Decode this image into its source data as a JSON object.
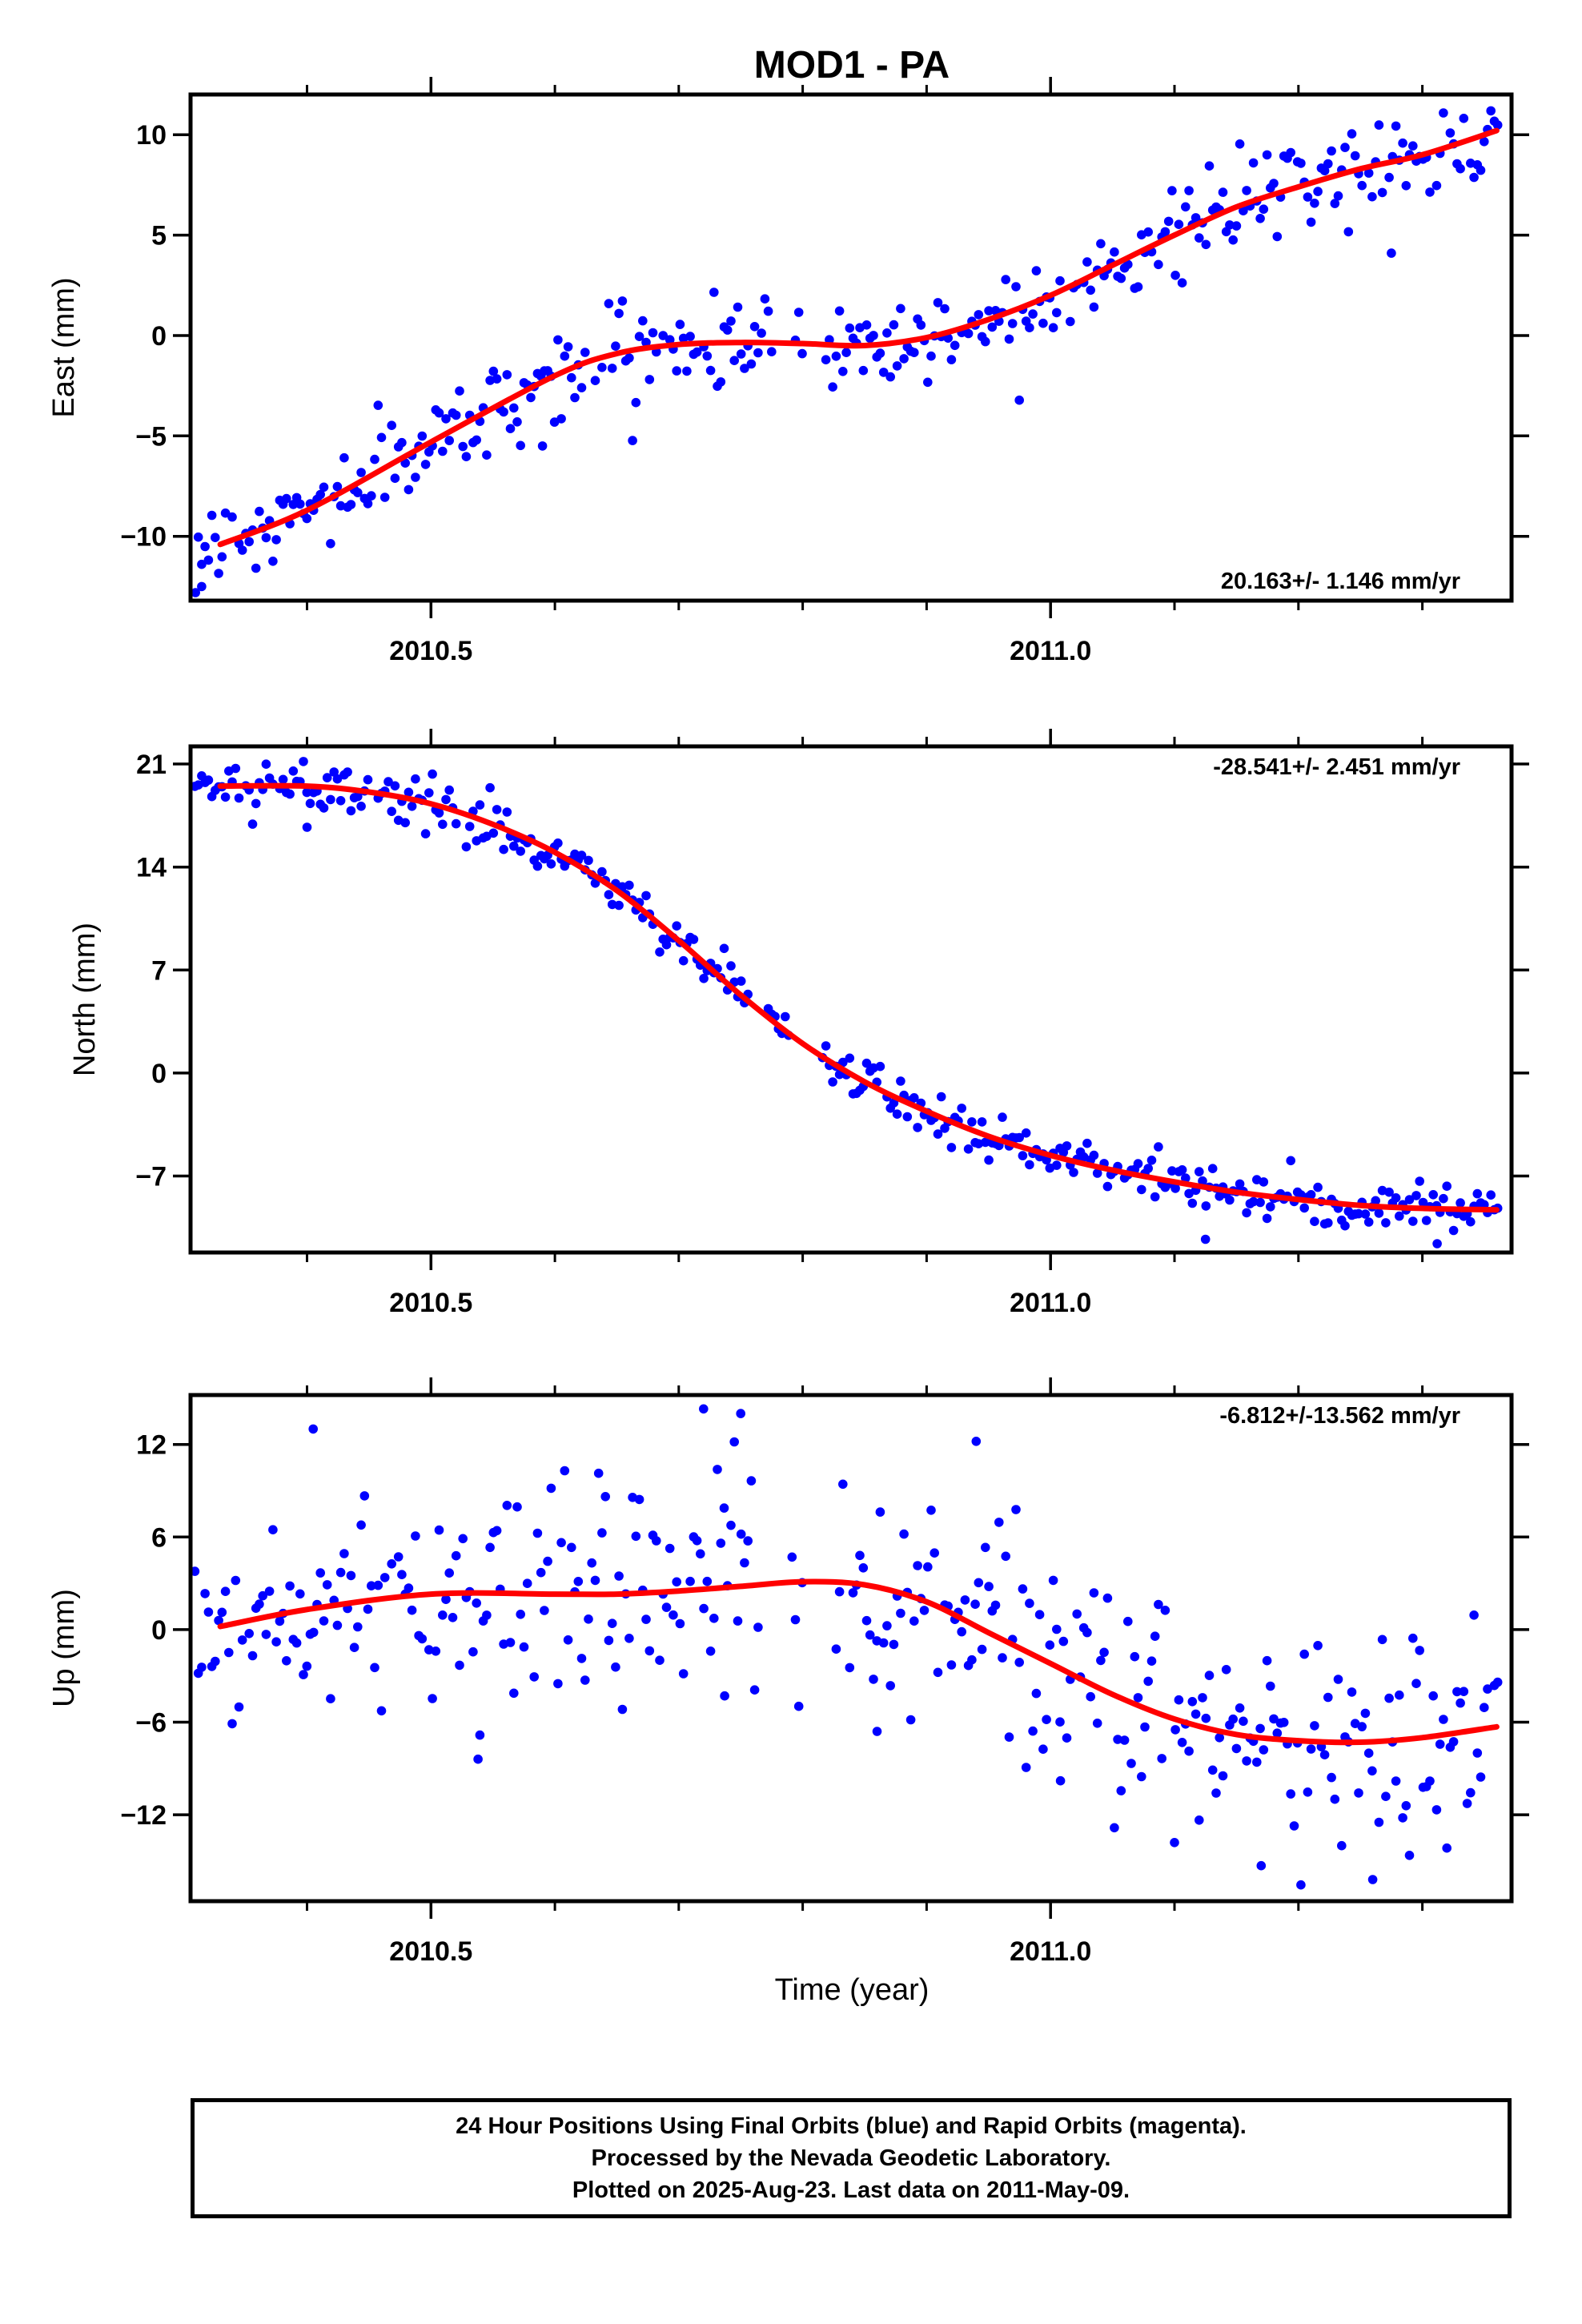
{
  "title": "MOD1 - PA",
  "xlabel": "Time (year)",
  "footer": {
    "lines": [
      "24 Hour Positions Using Final Orbits (blue) and Rapid Orbits (magenta).",
      "Processed by the Nevada Geodetic Laboratory.",
      "Plotted on 2025-Aug-23. Last data on 2011-May-09."
    ]
  },
  "colors": {
    "points": "#0000ff",
    "fit": "#ff0000",
    "axes": "#000000"
  },
  "chart_data": [
    {
      "type": "scatter",
      "component": "east",
      "ylabel": "East (mm)",
      "rate_label": "20.163+/- 1.146 mm/yr",
      "rate_placement": "bottom-right",
      "xlim": [
        2010.306,
        2011.372
      ],
      "ylim": [
        -13.2,
        12
      ],
      "x_ticks": [
        2010.5,
        2011.0
      ],
      "x_tick_labels": [
        "2010.5",
        "2011.0"
      ],
      "x_minor_step": 0.1,
      "y_ticks": [
        -10,
        -5,
        0,
        5,
        10
      ],
      "y_tick_labels": [
        "−10",
        "−5",
        "0",
        "5",
        "10"
      ],
      "noise_mm": 1.1,
      "grid": false,
      "fit": {
        "x": [
          2010.33,
          2010.4,
          2010.5,
          2010.6,
          2010.65,
          2010.7,
          2010.75,
          2010.8,
          2010.85,
          2010.9,
          2010.95,
          2011.0,
          2011.05,
          2011.1,
          2011.15,
          2011.2,
          2011.25,
          2011.3,
          2011.36
        ],
        "y": [
          -10.4,
          -8.7,
          -5.3,
          -2.0,
          -0.9,
          -0.45,
          -0.35,
          -0.4,
          -0.5,
          -0.1,
          0.8,
          2.0,
          3.5,
          5.0,
          6.4,
          7.4,
          8.3,
          9.0,
          10.2
        ]
      },
      "outliers": [
        [
          2010.31,
          -12.8
        ],
        [
          2010.315,
          -12.5
        ],
        [
          2010.59,
          -5.5
        ],
        [
          2011.275,
          4.1
        ]
      ],
      "gaps": [
        [
          2010.776,
          2010.793
        ],
        [
          2010.8,
          2010.818
        ]
      ]
    },
    {
      "type": "scatter",
      "component": "north",
      "ylabel": "North (mm)",
      "rate_label": "-28.541+/- 2.451 mm/yr",
      "rate_placement": "top-right",
      "xlim": [
        2010.306,
        2011.372
      ],
      "ylim": [
        -12.2,
        22.2
      ],
      "x_ticks": [
        2010.5,
        2011.0
      ],
      "x_tick_labels": [
        "2010.5",
        "2011.0"
      ],
      "x_minor_step": 0.1,
      "y_ticks": [
        -7,
        0,
        7,
        14,
        21
      ],
      "y_tick_labels": [
        "−7",
        "0",
        "7",
        "14",
        "21"
      ],
      "noise_mm": 0.85,
      "grid": false,
      "fit": {
        "x": [
          2010.33,
          2010.4,
          2010.45,
          2010.5,
          2010.55,
          2010.6,
          2010.65,
          2010.7,
          2010.75,
          2010.8,
          2010.85,
          2010.9,
          2010.95,
          2011.0,
          2011.05,
          2011.1,
          2011.15,
          2011.2,
          2011.25,
          2011.3,
          2011.36
        ],
        "y": [
          19.5,
          19.5,
          19.1,
          18.3,
          16.9,
          15.0,
          12.4,
          9.0,
          5.3,
          2.0,
          -0.6,
          -2.6,
          -4.3,
          -5.6,
          -6.6,
          -7.4,
          -8.1,
          -8.6,
          -9.0,
          -9.2,
          -9.3
        ]
      },
      "outliers": [
        [
          2010.4,
          16.7
        ],
        [
          2011.125,
          -11.3
        ],
        [
          2011.312,
          -11.6
        ]
      ],
      "gaps": [
        [
          2010.76,
          2010.772
        ],
        [
          2010.79,
          2010.815
        ]
      ]
    },
    {
      "type": "scatter",
      "component": "up",
      "ylabel": "Up (mm)",
      "rate_label": "-6.812+/-13.562 mm/yr",
      "rate_placement": "top-right",
      "xlim": [
        2010.306,
        2011.372
      ],
      "ylim": [
        -17.6,
        15.2
      ],
      "x_ticks": [
        2010.5,
        2011.0
      ],
      "x_tick_labels": [
        "2010.5",
        "2011.0"
      ],
      "x_minor_step": 0.1,
      "y_ticks": [
        -12,
        -6,
        0,
        6,
        12
      ],
      "y_tick_labels": [
        "−12",
        "−6",
        "0",
        "6",
        "12"
      ],
      "noise_mm": 3.6,
      "grid": false,
      "fit": {
        "x": [
          2010.33,
          2010.4,
          2010.5,
          2010.6,
          2010.65,
          2010.7,
          2010.75,
          2010.8,
          2010.85,
          2010.9,
          2010.95,
          2011.0,
          2011.05,
          2011.1,
          2011.15,
          2011.2,
          2011.25,
          2011.3,
          2011.36
        ],
        "y": [
          0.2,
          1.3,
          2.3,
          2.3,
          2.3,
          2.5,
          2.8,
          3.1,
          2.9,
          1.8,
          -0.2,
          -2.2,
          -4.2,
          -5.8,
          -6.8,
          -7.2,
          -7.3,
          -7.0,
          -6.3
        ]
      },
      "outliers": [
        [
          2010.405,
          13.0
        ],
        [
          2010.72,
          14.3
        ],
        [
          2010.737,
          -4.3
        ],
        [
          2010.75,
          14.0
        ],
        [
          2010.538,
          -8.4
        ],
        [
          2010.94,
          12.2
        ],
        [
          2011.1,
          -13.8
        ],
        [
          2011.17,
          -15.3
        ],
        [
          2011.26,
          -16.2
        ],
        [
          2010.86,
          -6.6
        ],
        [
          2011.008,
          -9.8
        ]
      ],
      "gaps": [
        [
          2010.765,
          2010.79
        ],
        [
          2010.8,
          2010.825
        ]
      ]
    }
  ]
}
